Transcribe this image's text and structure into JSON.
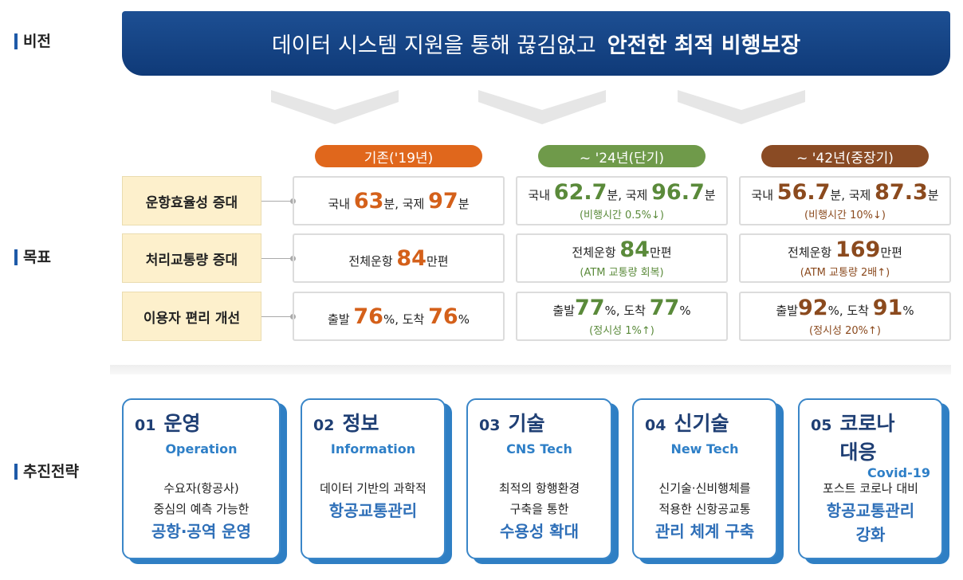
{
  "sections": {
    "vision": "비전",
    "goals": "목표",
    "strategy": "추진전략"
  },
  "vision": {
    "text": "데이터 시스템 지원을 통해 끊김없고",
    "emphasis": "안전한 최적 비행보장"
  },
  "periods": [
    "기존('19년)",
    "~ '24년(단기)",
    "~ '42년(중장기)"
  ],
  "goals": [
    {
      "label": "운항효율성 증대",
      "cells": [
        {
          "line": [
            "국내 ",
            "63",
            "분, 국제 ",
            "97",
            "분"
          ]
        },
        {
          "line": [
            "국내 ",
            "62.7",
            "분, 국제 ",
            "96.7",
            "분"
          ],
          "note": "(비행시간 0.5%↓)"
        },
        {
          "line": [
            "국내 ",
            "56.7",
            "분, 국제 ",
            "87.3",
            "분"
          ],
          "note": "(비행시간 10%↓)"
        }
      ]
    },
    {
      "label": "처리교통량 증대",
      "cells": [
        {
          "line": [
            "전체운항 ",
            "84",
            "만편"
          ]
        },
        {
          "line": [
            "전체운항 ",
            "84",
            "만편"
          ],
          "note": "(ATM 교통량 회복)"
        },
        {
          "line": [
            "전체운항 ",
            "169",
            "만편"
          ],
          "note": "(ATM 교통량 2배↑)"
        }
      ]
    },
    {
      "label": "이용자 편리 개선",
      "cells": [
        {
          "line": [
            "출발 ",
            "76",
            "%, 도착 ",
            "76",
            "%"
          ]
        },
        {
          "line": [
            "출발",
            "77",
            "%, 도착 ",
            "77",
            "%"
          ],
          "note": "(정시성 1%↑)"
        },
        {
          "line": [
            "출발",
            "92",
            "%, 도착 ",
            "91",
            "%"
          ],
          "note": "(정시성 20%↑)"
        }
      ]
    }
  ],
  "strategies": [
    {
      "number": "01",
      "title": "운영",
      "subtitle": "Operation",
      "desc": [
        "수요자(항공사)",
        "중심의 예측 가능한"
      ],
      "highlight": [
        "공항·공역 운영"
      ]
    },
    {
      "number": "02",
      "title": "정보",
      "subtitle": "Information",
      "desc": [
        "데이터 기반의 과학적"
      ],
      "highlight": [
        "항공교통관리"
      ]
    },
    {
      "number": "03",
      "title": "기술",
      "subtitle": "CNS Tech",
      "desc": [
        "최적의 항행환경",
        "구축을 통한"
      ],
      "highlight": [
        "수용성 확대"
      ]
    },
    {
      "number": "04",
      "title": "신기술",
      "subtitle": "New Tech",
      "desc": [
        "신기술·신비행체를",
        "적용한 신항공교통"
      ],
      "highlight": [
        "관리 체계 구축"
      ]
    },
    {
      "number": "05",
      "title": "코로나 대응",
      "subtitle": "Covid-19",
      "desc": [
        "포스트 코로나 대비"
      ],
      "highlight": [
        "항공교통관리",
        "강화"
      ]
    }
  ]
}
